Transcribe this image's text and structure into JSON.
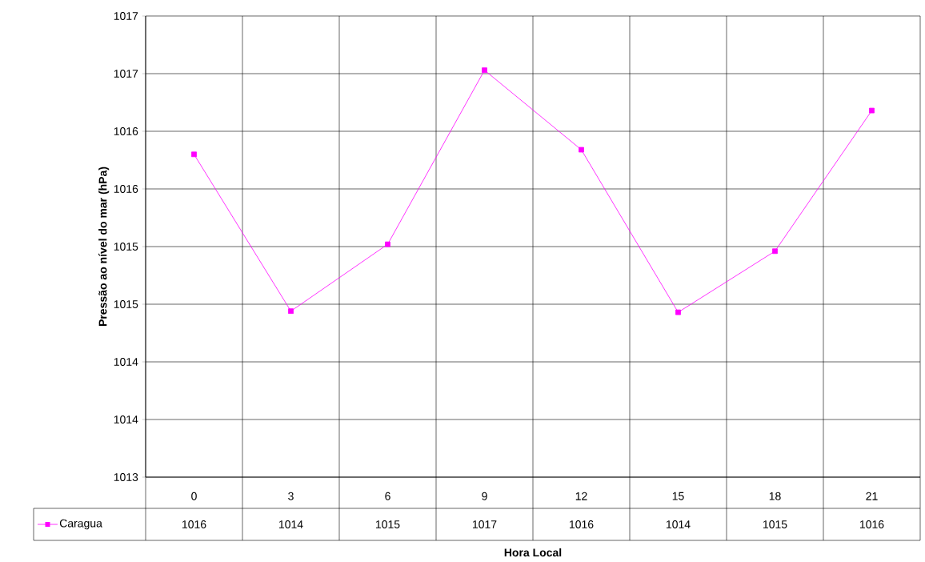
{
  "chart_data": {
    "type": "line",
    "xlabel": "Hora Local",
    "ylabel": "Pressão ao nível do mar (hPa)",
    "categories": [
      "0",
      "3",
      "6",
      "9",
      "12",
      "15",
      "18",
      "21"
    ],
    "series": [
      {
        "name": "Caragua",
        "color": "#ff00ff",
        "values": [
          1015.8,
          1014.44,
          1015.02,
          1016.53,
          1015.84,
          1014.43,
          1014.96,
          1016.18
        ],
        "value_labels": [
          "1016",
          "1014",
          "1015",
          "1017",
          "1016",
          "1014",
          "1015",
          "1016"
        ]
      }
    ],
    "ylim": [
      1013,
      1017
    ],
    "yticks": [
      1013,
      {
        "value": 1013.5,
        "label": "1014"
      },
      1014,
      {
        "value": 1014.5,
        "label": "1015"
      },
      1015,
      {
        "value": 1015.5,
        "label": "1016"
      },
      1016,
      {
        "value": 1016.5,
        "label": "1017"
      },
      1017
    ],
    "grid": true,
    "legend": "bottom left",
    "marker": "square",
    "line_style": "solid"
  }
}
